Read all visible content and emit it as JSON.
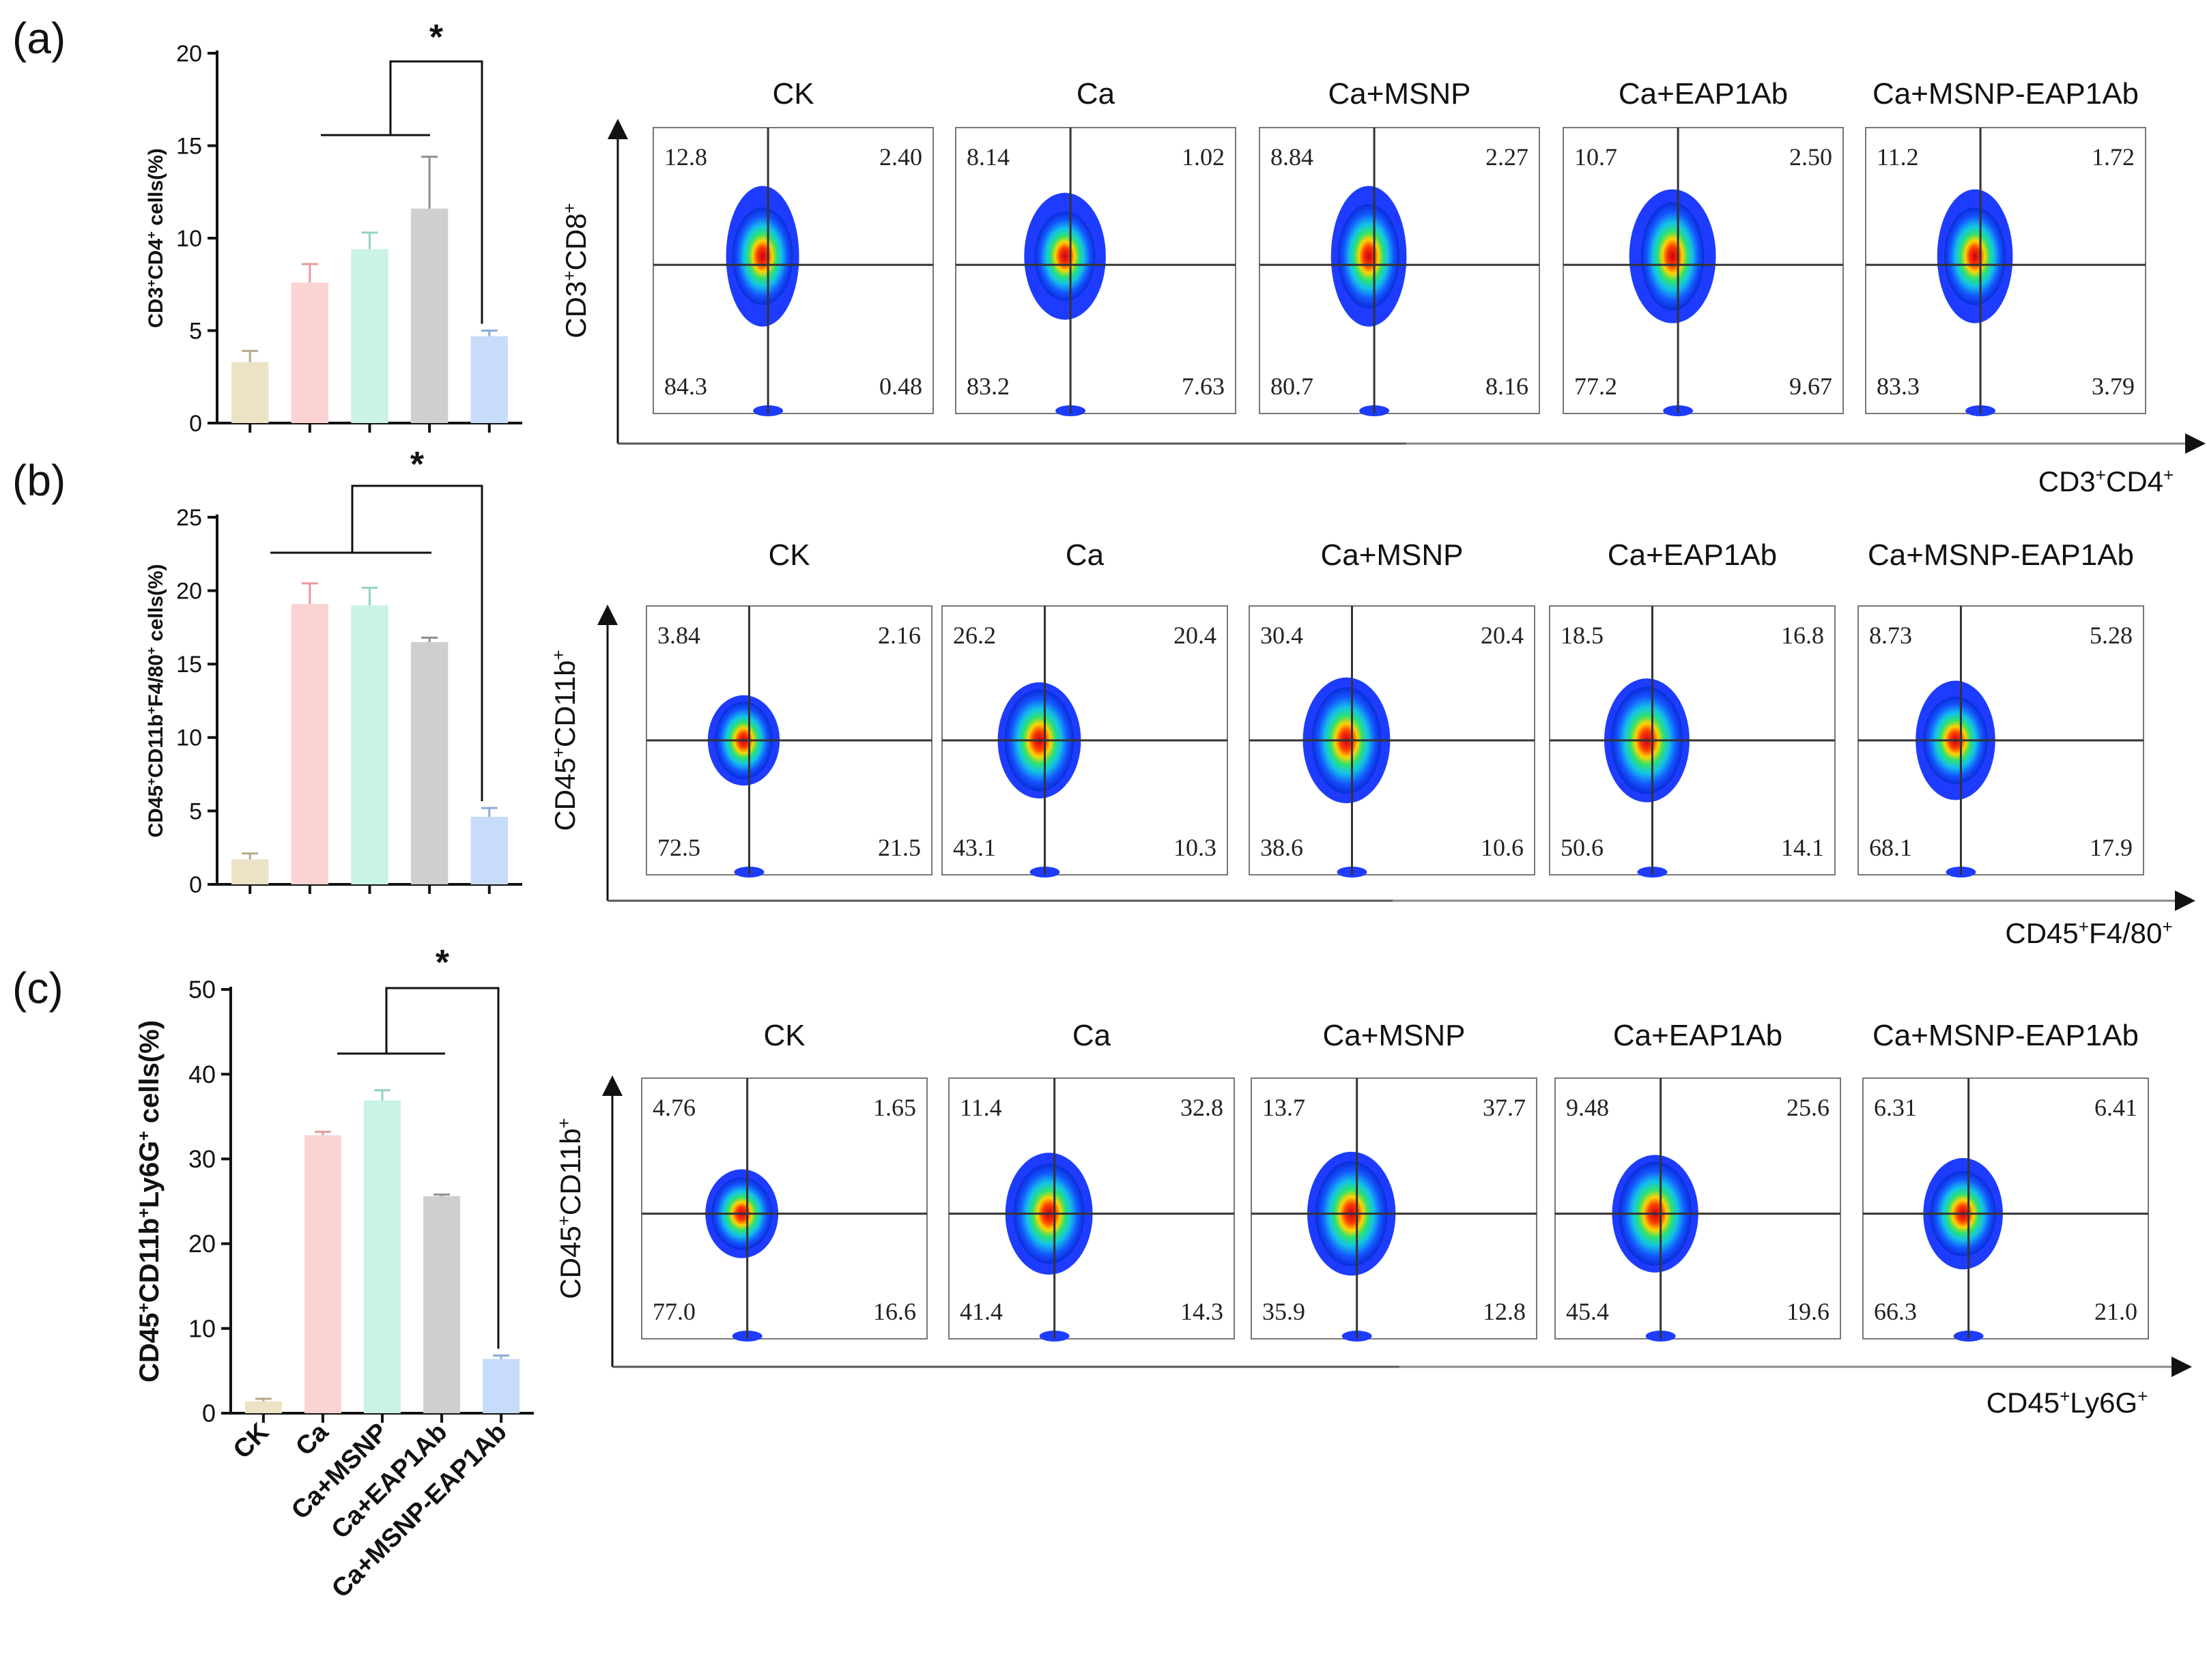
{
  "colors": {
    "bars": [
      "#ece2c6",
      "#fcd3d3",
      "#c9f3e2",
      "#cfcfcf",
      "#c7dcfa"
    ],
    "errorbar": [
      "#b8a884",
      "#e69a9a",
      "#8fd4b7",
      "#8f8f8f",
      "#8aaad8"
    ],
    "axis": "#111111"
  },
  "group_names": [
    "CK",
    "Ca",
    "Ca+MSNP",
    "Ca+EAP1Ab",
    "Ca+MSNP-EAP1Ab"
  ],
  "chart_data": [
    {
      "panel": "(a)",
      "type": "bar",
      "categories": [
        "CK",
        "Ca",
        "Ca+MSNP",
        "Ca+EAP1Ab",
        "Ca+MSNP-EAP1Ab"
      ],
      "values": [
        3.3,
        7.6,
        9.4,
        11.6,
        4.7
      ],
      "errors": [
        0.6,
        1.0,
        0.9,
        2.8,
        0.3
      ],
      "ylabel_parts": [
        [
          "CD3",
          ""
        ],
        [
          "+",
          "sup"
        ],
        [
          "CD4",
          ""
        ],
        [
          "+",
          "sup"
        ],
        [
          " cells(%)",
          ""
        ]
      ],
      "ylim": [
        0,
        20
      ],
      "yticks": [
        0,
        5,
        10,
        15,
        20
      ],
      "significance": "*",
      "flow": {
        "titles": [
          "CK",
          "Ca",
          "Ca+MSNP",
          "Ca+EAP1Ab",
          "Ca+MSNP-EAP1Ab"
        ],
        "quadrants": [
          [
            "12.8",
            "2.40",
            "84.3",
            "0.48"
          ],
          [
            "8.14",
            "1.02",
            "83.2",
            "7.63"
          ],
          [
            "8.84",
            "2.27",
            "80.7",
            "8.16"
          ],
          [
            "10.7",
            "2.50",
            "77.2",
            "9.67"
          ],
          [
            "11.2",
            "1.72",
            "83.3",
            "3.79"
          ]
        ],
        "y_axis_parts": [
          [
            "CD3",
            ""
          ],
          [
            "+",
            "sup"
          ],
          [
            "CD8",
            ""
          ],
          [
            "+",
            "sup"
          ]
        ],
        "x_axis_parts": [
          [
            "CD3",
            ""
          ],
          [
            "+",
            "sup"
          ],
          [
            "CD4",
            ""
          ],
          [
            "+",
            "sup"
          ]
        ]
      }
    },
    {
      "panel": "(b)",
      "type": "bar",
      "categories": [
        "CK",
        "Ca",
        "Ca+MSNP",
        "Ca+EAP1Ab",
        "Ca+MSNP-EAP1Ab"
      ],
      "values": [
        1.7,
        19.1,
        19.0,
        16.5,
        4.6
      ],
      "errors": [
        0.4,
        1.4,
        1.2,
        0.3,
        0.6
      ],
      "ylabel_parts": [
        [
          "CD45",
          ""
        ],
        [
          "+",
          "sup"
        ],
        [
          "CD11b",
          ""
        ],
        [
          "+",
          "sup"
        ],
        [
          "F4/80",
          ""
        ],
        [
          "+",
          "sup"
        ],
        [
          " cells(%)",
          ""
        ]
      ],
      "ylim": [
        0,
        25
      ],
      "yticks": [
        0,
        5,
        10,
        15,
        20,
        25
      ],
      "significance": "*",
      "flow": {
        "titles": [
          "CK",
          "Ca",
          "Ca+MSNP",
          "Ca+EAP1Ab",
          "Ca+MSNP-EAP1Ab"
        ],
        "quadrants": [
          [
            "3.84",
            "2.16",
            "72.5",
            "21.5"
          ],
          [
            "26.2",
            "20.4",
            "43.1",
            "10.3"
          ],
          [
            "30.4",
            "20.4",
            "38.6",
            "10.6"
          ],
          [
            "18.5",
            "16.8",
            "50.6",
            "14.1"
          ],
          [
            "8.73",
            "5.28",
            "68.1",
            "17.9"
          ]
        ],
        "y_axis_parts": [
          [
            "CD45",
            ""
          ],
          [
            "+",
            "sup"
          ],
          [
            "CD11b",
            ""
          ],
          [
            "+",
            "sup"
          ]
        ],
        "x_axis_parts": [
          [
            "CD45",
            ""
          ],
          [
            "+",
            "sup"
          ],
          [
            "F4/80",
            ""
          ],
          [
            "+",
            "sup"
          ]
        ]
      }
    },
    {
      "panel": "(c)",
      "type": "bar",
      "categories": [
        "CK",
        "Ca",
        "Ca+MSNP",
        "Ca+EAP1Ab",
        "Ca+MSNP-EAP1Ab"
      ],
      "values": [
        1.4,
        32.8,
        36.9,
        25.6,
        6.4
      ],
      "errors": [
        0.3,
        0.4,
        1.2,
        0.2,
        0.4
      ],
      "ylabel_parts": [
        [
          "CD45",
          ""
        ],
        [
          "+",
          "sup"
        ],
        [
          "CD11b",
          ""
        ],
        [
          "+",
          "sup"
        ],
        [
          "Ly6G",
          ""
        ],
        [
          "+",
          "sup"
        ],
        [
          " cells(%)",
          ""
        ]
      ],
      "ylim": [
        0,
        50
      ],
      "yticks": [
        0,
        10,
        20,
        30,
        40,
        50
      ],
      "significance": "*",
      "flow": {
        "titles": [
          "CK",
          "Ca",
          "Ca+MSNP",
          "Ca+EAP1Ab",
          "Ca+MSNP-EAP1Ab"
        ],
        "quadrants": [
          [
            "4.76",
            "1.65",
            "77.0",
            "16.6"
          ],
          [
            "11.4",
            "32.8",
            "41.4",
            "14.3"
          ],
          [
            "13.7",
            "37.7",
            "35.9",
            "12.8"
          ],
          [
            "9.48",
            "25.6",
            "45.4",
            "19.6"
          ],
          [
            "6.31",
            "6.41",
            "66.3",
            "21.0"
          ]
        ],
        "y_axis_parts": [
          [
            "CD45",
            ""
          ],
          [
            "+",
            "sup"
          ],
          [
            "CD11b",
            ""
          ],
          [
            "+",
            "sup"
          ]
        ],
        "x_axis_parts": [
          [
            "CD45",
            ""
          ],
          [
            "+",
            "sup"
          ],
          [
            "Ly6G",
            ""
          ],
          [
            "+",
            "sup"
          ]
        ]
      }
    }
  ]
}
